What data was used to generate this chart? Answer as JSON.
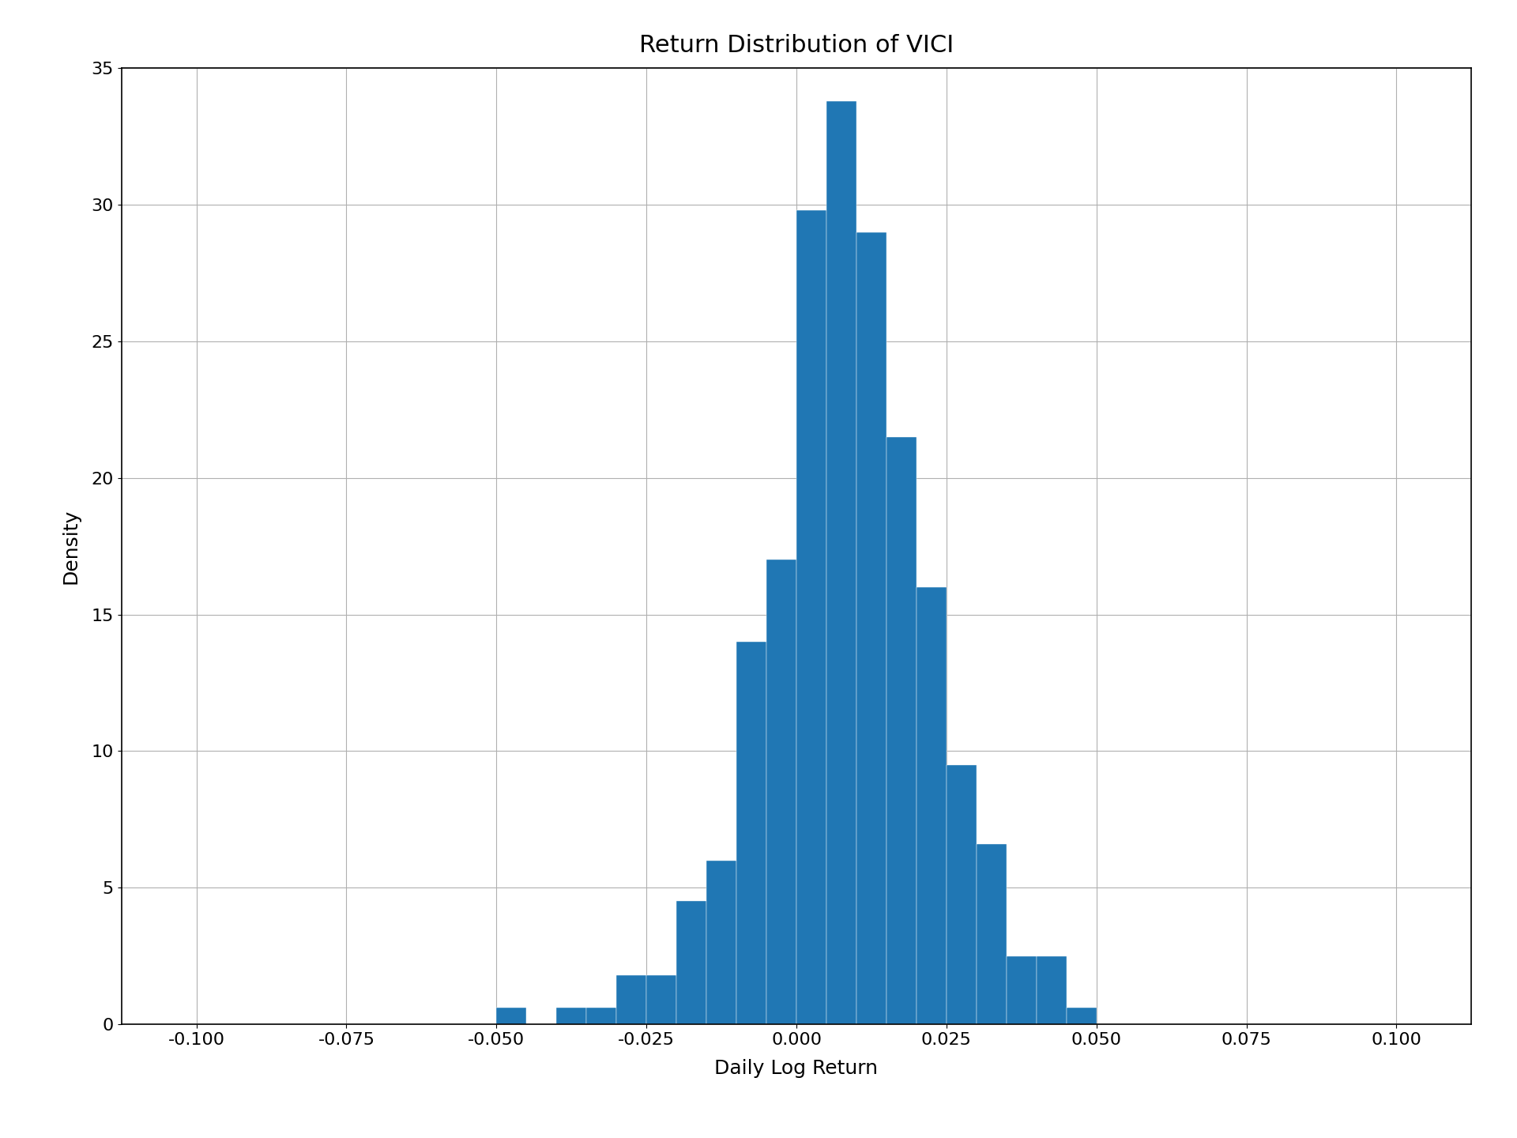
{
  "title": "Return Distribution of VICI",
  "xlabel": "Daily Log Return",
  "ylabel": "Density",
  "bar_color": "#2077b4",
  "xlim": [
    -0.1125,
    0.1125
  ],
  "ylim": [
    0,
    35
  ],
  "xticks": [
    -0.1,
    -0.075,
    -0.05,
    -0.025,
    0.0,
    0.025,
    0.05,
    0.075,
    0.1
  ],
  "yticks": [
    0,
    5,
    10,
    15,
    20,
    25,
    30,
    35
  ],
  "bin_edges": [
    -0.11,
    -0.105,
    -0.1,
    -0.095,
    -0.09,
    -0.085,
    -0.08,
    -0.075,
    -0.07,
    -0.065,
    -0.06,
    -0.055,
    -0.05,
    -0.045,
    -0.04,
    -0.035,
    -0.03,
    -0.025,
    -0.02,
    -0.015,
    -0.01,
    -0.005,
    0.0,
    0.005,
    0.01,
    0.015,
    0.02,
    0.025,
    0.03,
    0.035,
    0.04,
    0.045,
    0.05,
    0.055,
    0.06,
    0.065,
    0.07,
    0.075,
    0.08,
    0.085,
    0.09,
    0.095,
    0.1,
    0.105,
    0.11
  ],
  "bin_heights": [
    0,
    0,
    0,
    0,
    0,
    0,
    0,
    0,
    0,
    0,
    0,
    0,
    0.6,
    0,
    0.6,
    0.6,
    1.8,
    1.8,
    4.5,
    6.0,
    14.0,
    17.0,
    29.8,
    33.8,
    29.0,
    21.5,
    16.0,
    9.5,
    6.6,
    2.5,
    2.5,
    0.6,
    0,
    0,
    0,
    0,
    0,
    0,
    0,
    0,
    0,
    0,
    0,
    0
  ],
  "title_fontsize": 22,
  "label_fontsize": 18,
  "tick_fontsize": 16,
  "figsize": [
    19.2,
    14.4
  ],
  "dpi": 100,
  "grid_color": "#b0b0b0",
  "grid_linewidth": 0.8,
  "background_color": "#ffffff"
}
